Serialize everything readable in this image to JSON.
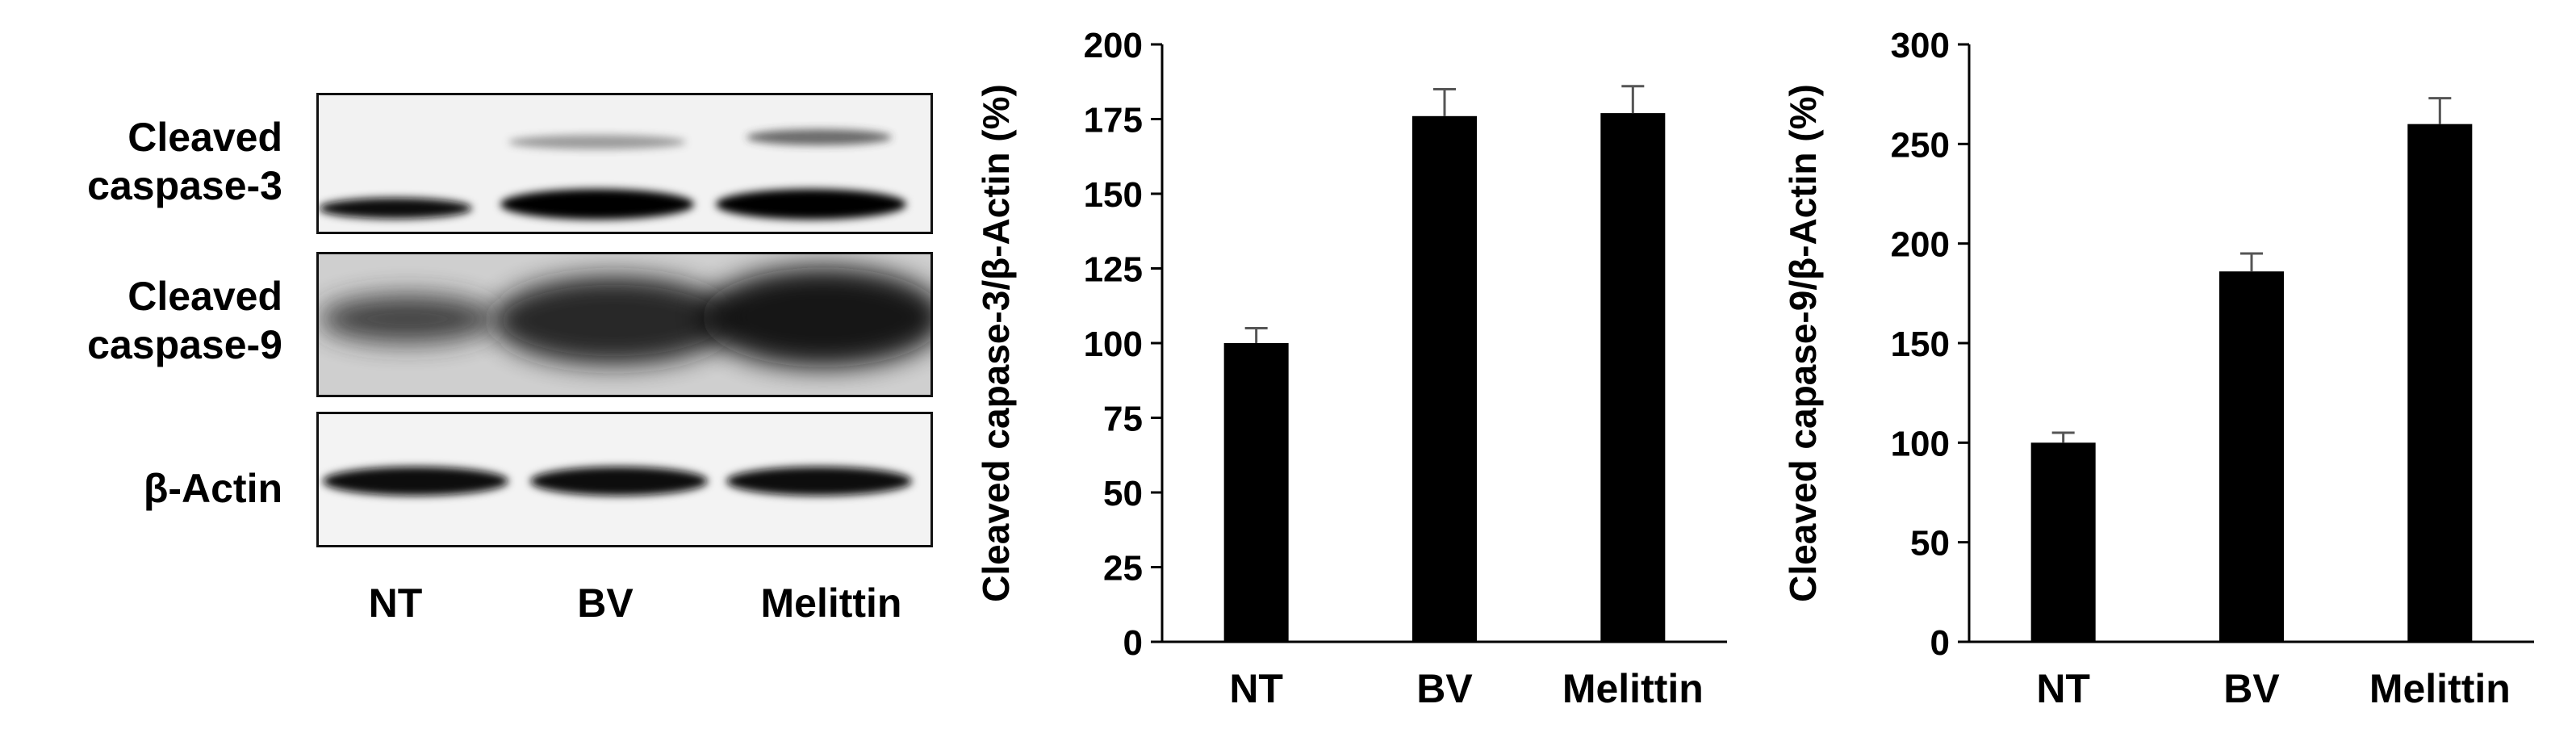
{
  "western_blot": {
    "rows": [
      {
        "label_line1": "Cleaved",
        "label_line2": "caspase-3"
      },
      {
        "label_line1": "Cleaved",
        "label_line2": "caspase-9"
      },
      {
        "label_line1": "β-Actin",
        "label_line2": ""
      }
    ],
    "lanes": [
      "NT",
      "BV",
      "Melittin"
    ]
  },
  "chart_data": [
    {
      "type": "bar",
      "categories": [
        "NT",
        "BV",
        "Melittin"
      ],
      "values": [
        100,
        176,
        177
      ],
      "errors": [
        5,
        9,
        9
      ],
      "ylabel": "Cleaved capase-3/β-Actin (%)",
      "ylim": [
        0,
        200
      ],
      "yticks": [
        0,
        25,
        50,
        75,
        100,
        125,
        150,
        175,
        200
      ],
      "color": "#000000"
    },
    {
      "type": "bar",
      "categories": [
        "NT",
        "BV",
        "Melittin"
      ],
      "values": [
        100,
        186,
        260
      ],
      "errors": [
        5,
        9,
        13
      ],
      "ylabel": "Cleaved capase-9/β-Actin (%)",
      "ylim": [
        0,
        300
      ],
      "yticks": [
        0,
        50,
        100,
        150,
        200,
        250,
        300
      ],
      "color": "#000000"
    }
  ]
}
